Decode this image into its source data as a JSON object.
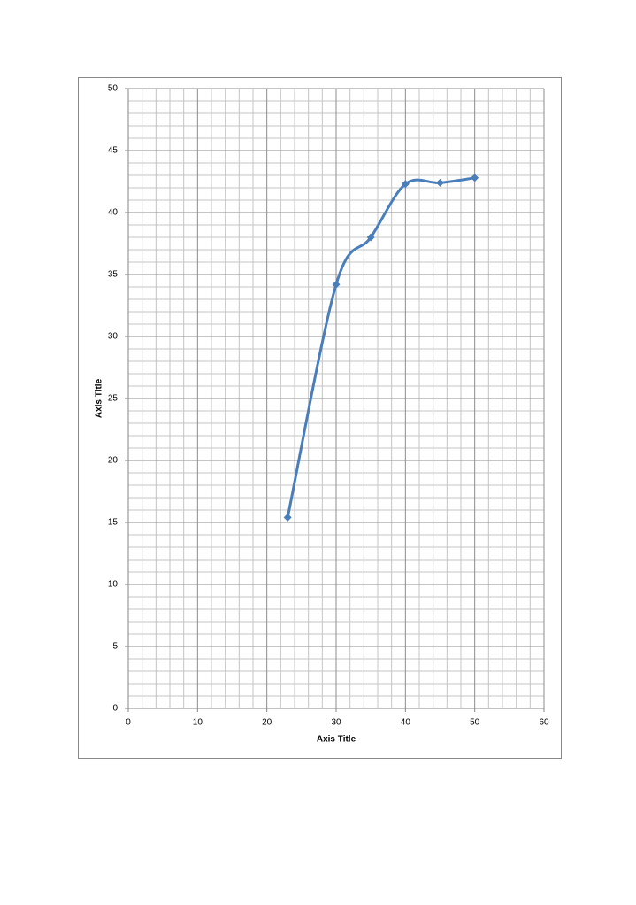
{
  "chart_data": {
    "type": "scatter-smooth",
    "x_label": "Axis Title",
    "y_label": "Axis Title",
    "x": [
      23,
      30,
      35,
      40,
      45,
      50
    ],
    "series": [
      {
        "color": "#4a7ebb",
        "values": [
          15.4,
          34.2,
          38,
          42.3,
          42.4,
          42.8
        ]
      }
    ],
    "xlim": [
      0,
      60
    ],
    "xticks": [
      0,
      10,
      20,
      30,
      40,
      50,
      60
    ],
    "ylim": [
      0,
      50
    ],
    "yticks": [
      0,
      5,
      10,
      15,
      20,
      25,
      30,
      35,
      40,
      45,
      50
    ],
    "grid": true,
    "minor_grid": true
  }
}
